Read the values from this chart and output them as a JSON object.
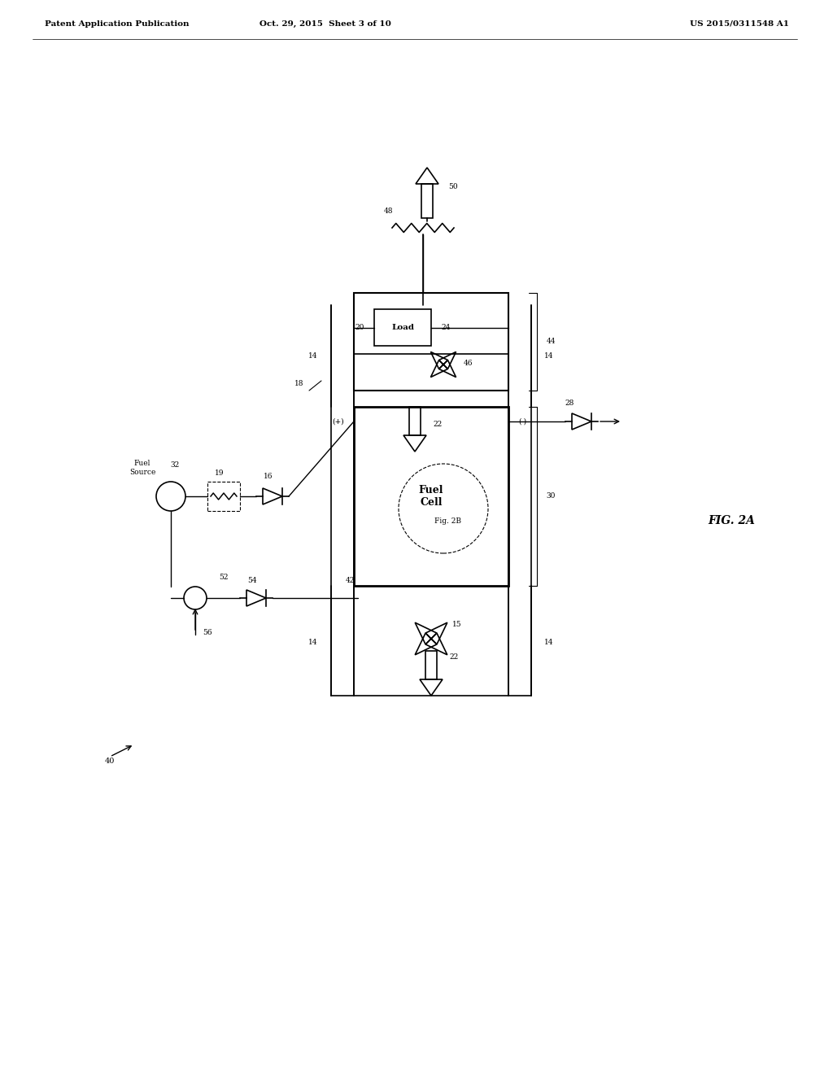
{
  "title": "FIG. 2A",
  "patent_header_left": "Patent Application Publication",
  "patent_header_mid": "Oct. 29, 2015  Sheet 3 of 10",
  "patent_header_right": "US 2015/0311548 A1",
  "bg_color": "#ffffff",
  "line_color": "#000000",
  "fig_label": "FIG. 2A",
  "diagram_number": "40"
}
